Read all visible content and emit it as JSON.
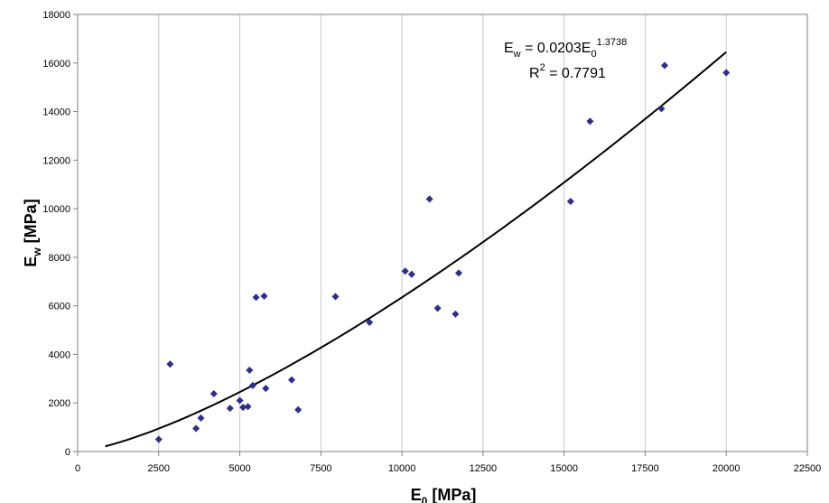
{
  "chart_data": {
    "type": "scatter",
    "x_axis": {
      "label_main": "E",
      "label_sub": "0",
      "label_unit": "[MPa]",
      "min": 0,
      "max": 22500,
      "step": 2500,
      "tick_labels": [
        "0",
        "2500",
        "5000",
        "7500",
        "10000",
        "12500",
        "15000",
        "17500",
        "20000",
        "22500"
      ]
    },
    "y_axis": {
      "label_main": "E",
      "label_sub": "w",
      "label_unit": "[MPa]",
      "min": 0,
      "max": 18000,
      "step": 2000,
      "tick_labels": [
        "0",
        "2000",
        "4000",
        "6000",
        "8000",
        "10000",
        "12000",
        "14000",
        "16000",
        "18000"
      ]
    },
    "grid": {
      "vertical": true,
      "horizontal": false
    },
    "marker_color": "#2E2E8C",
    "trendline_color": "#000000",
    "points": [
      {
        "x": 2500,
        "y": 500
      },
      {
        "x": 2850,
        "y": 3600
      },
      {
        "x": 3650,
        "y": 950
      },
      {
        "x": 3800,
        "y": 1380
      },
      {
        "x": 4200,
        "y": 2380
      },
      {
        "x": 4700,
        "y": 1780
      },
      {
        "x": 5000,
        "y": 2100
      },
      {
        "x": 5100,
        "y": 1820
      },
      {
        "x": 5250,
        "y": 1850
      },
      {
        "x": 5300,
        "y": 3350
      },
      {
        "x": 5400,
        "y": 2720
      },
      {
        "x": 5500,
        "y": 6350
      },
      {
        "x": 5750,
        "y": 6400
      },
      {
        "x": 5800,
        "y": 2600
      },
      {
        "x": 6600,
        "y": 2950
      },
      {
        "x": 6800,
        "y": 1720
      },
      {
        "x": 7950,
        "y": 6380
      },
      {
        "x": 9000,
        "y": 5320
      },
      {
        "x": 10100,
        "y": 7430
      },
      {
        "x": 10300,
        "y": 7300
      },
      {
        "x": 10850,
        "y": 10400
      },
      {
        "x": 11100,
        "y": 5900
      },
      {
        "x": 11650,
        "y": 5660
      },
      {
        "x": 11750,
        "y": 7350
      },
      {
        "x": 15200,
        "y": 10300
      },
      {
        "x": 15800,
        "y": 13600
      },
      {
        "x": 18000,
        "y": 14120
      },
      {
        "x": 18100,
        "y": 15900
      },
      {
        "x": 20000,
        "y": 15600
      }
    ],
    "trendline": {
      "type": "power",
      "coefficient": 0.0203,
      "exponent": 1.3738,
      "x_start": 850,
      "x_end": 20000
    },
    "equation": {
      "lhs": "E",
      "lhs_sub": "w",
      "mid": " = 0.0203E",
      "mid_sub": "0",
      "exponent": "1.3738",
      "r2_prefix": "R",
      "r2_sup": "2",
      "r2_value": " = 0.7791"
    }
  }
}
